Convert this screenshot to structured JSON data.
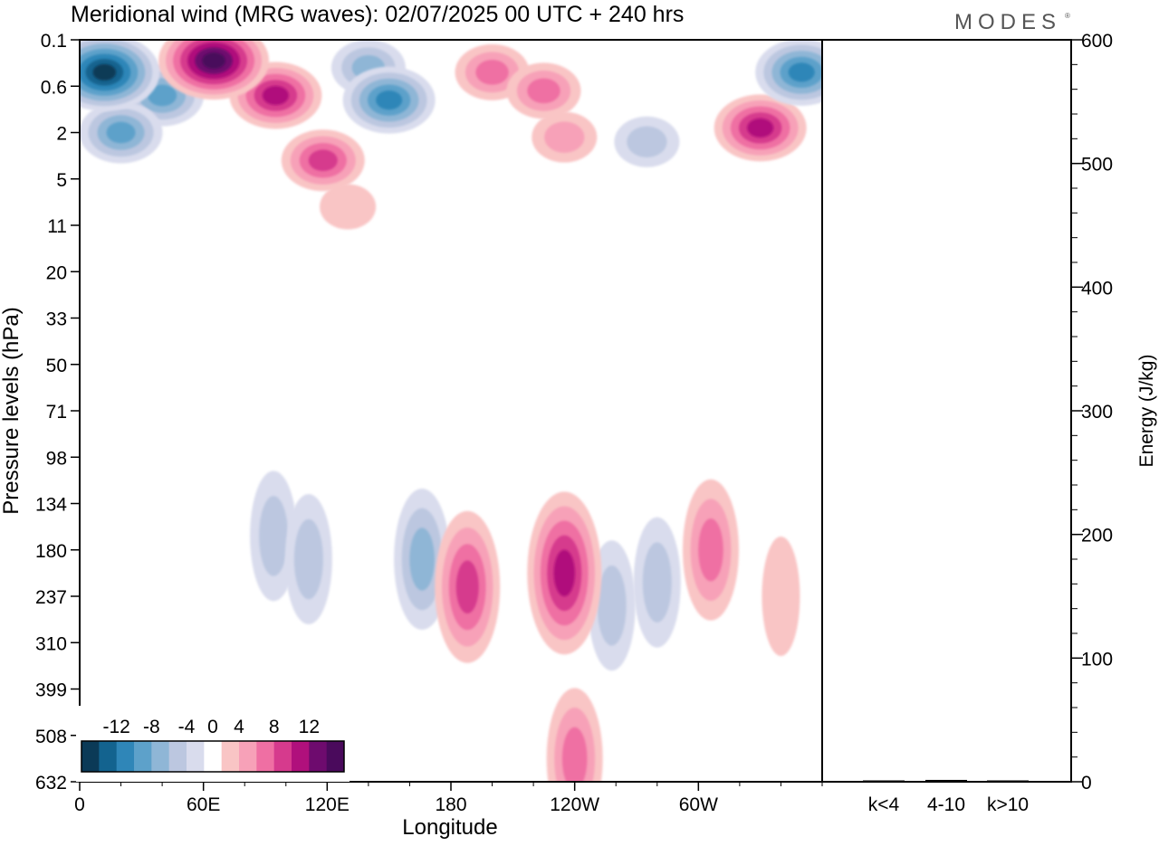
{
  "header": {
    "title": "Meridional wind (MRG waves):  02/07/2025  00 UTC  + 240 hrs",
    "logo": "MODES"
  },
  "chart_data": [
    {
      "type": "heatmap",
      "title": "Meridional wind (MRG waves):  02/07/2025  00 UTC  + 240 hrs",
      "xlabel": "Longitude",
      "ylabel": "Pressure levels (hPa)",
      "x_ticks": [
        "0",
        "60E",
        "120E",
        "180",
        "120W",
        "60W"
      ],
      "x_tick_deg": [
        0,
        60,
        120,
        180,
        240,
        300
      ],
      "xlim_deg": [
        0,
        360
      ],
      "y_ticks": [
        "0.1",
        "0.6",
        "2",
        "5",
        "11",
        "20",
        "33",
        "50",
        "71",
        "98",
        "134",
        "180",
        "237",
        "310",
        "399",
        "508",
        "632"
      ],
      "y_scale": "ordinal pressure levels, top = 0.1 hPa, bottom = 632 hPa",
      "colorbar": {
        "labels": [
          "-12",
          "-8",
          "-4",
          "0",
          "4",
          "8",
          "12"
        ],
        "label_values": [
          -12,
          -8,
          -4,
          0,
          4,
          8,
          12
        ],
        "levels": [
          -14,
          -12,
          -10,
          -8,
          -6,
          -4,
          -2,
          2,
          4,
          6,
          8,
          10,
          12,
          14
        ],
        "colors": [
          "#0b3a57",
          "#13638f",
          "#2f86b8",
          "#5da1ca",
          "#8fb6d6",
          "#bcc7e0",
          "#d9dced",
          "#ffffff",
          "#f9c5c5",
          "#f7a1b8",
          "#ef6fa3",
          "#d63a8d",
          "#b0107c",
          "#6e0b6e",
          "#4a0a5c"
        ],
        "placement": "bottom-left"
      },
      "features": [
        {
          "lon": 12,
          "level": 0.7,
          "value": -14
        },
        {
          "lon": 40,
          "level": 1.2,
          "value": -8
        },
        {
          "lon": 20,
          "level": 2.0,
          "value": -8
        },
        {
          "lon": 65,
          "level": 0.45,
          "value": 14
        },
        {
          "lon": 95,
          "level": 1.2,
          "value": 10
        },
        {
          "lon": 118,
          "level": 2.6,
          "value": 8
        },
        {
          "lon": 140,
          "level": 0.6,
          "value": -6
        },
        {
          "lon": 150,
          "level": 1.3,
          "value": -10
        },
        {
          "lon": 130,
          "level": 3.6,
          "value": 2
        },
        {
          "lon": 200,
          "level": 0.7,
          "value": 6
        },
        {
          "lon": 225,
          "level": 1.1,
          "value": 6
        },
        {
          "lon": 235,
          "level": 2.1,
          "value": 4
        },
        {
          "lon": 275,
          "level": 2.2,
          "value": -4
        },
        {
          "lon": 330,
          "level": 1.9,
          "value": 10
        },
        {
          "lon": 350,
          "level": 0.7,
          "value": -10
        },
        {
          "lon": 94,
          "level": 10.7,
          "value": -4
        },
        {
          "lon": 111,
          "level": 11.2,
          "value": -4
        },
        {
          "lon": 166,
          "level": 11.2,
          "value": -6
        },
        {
          "lon": 188,
          "level": 11.8,
          "value": 8
        },
        {
          "lon": 235,
          "level": 11.5,
          "value": 10
        },
        {
          "lon": 258,
          "level": 12.2,
          "value": -4
        },
        {
          "lon": 280,
          "level": 11.7,
          "value": -4
        },
        {
          "lon": 306,
          "level": 11.0,
          "value": 6
        },
        {
          "lon": 340,
          "level": 12.0,
          "value": 2
        },
        {
          "lon": 240,
          "level": 15.5,
          "value": 6
        }
      ]
    },
    {
      "type": "bar",
      "categories": [
        "k<4",
        "4-10",
        "k>10"
      ],
      "values": [
        0.5,
        1.5,
        0.5
      ],
      "ylabel": "Energy (J/kg)",
      "ylim": [
        0,
        600
      ],
      "y_ticks": [
        "0",
        "100",
        "200",
        "300",
        "400",
        "500",
        "600"
      ],
      "y_tick_values": [
        0,
        100,
        200,
        300,
        400,
        500,
        600
      ]
    }
  ]
}
